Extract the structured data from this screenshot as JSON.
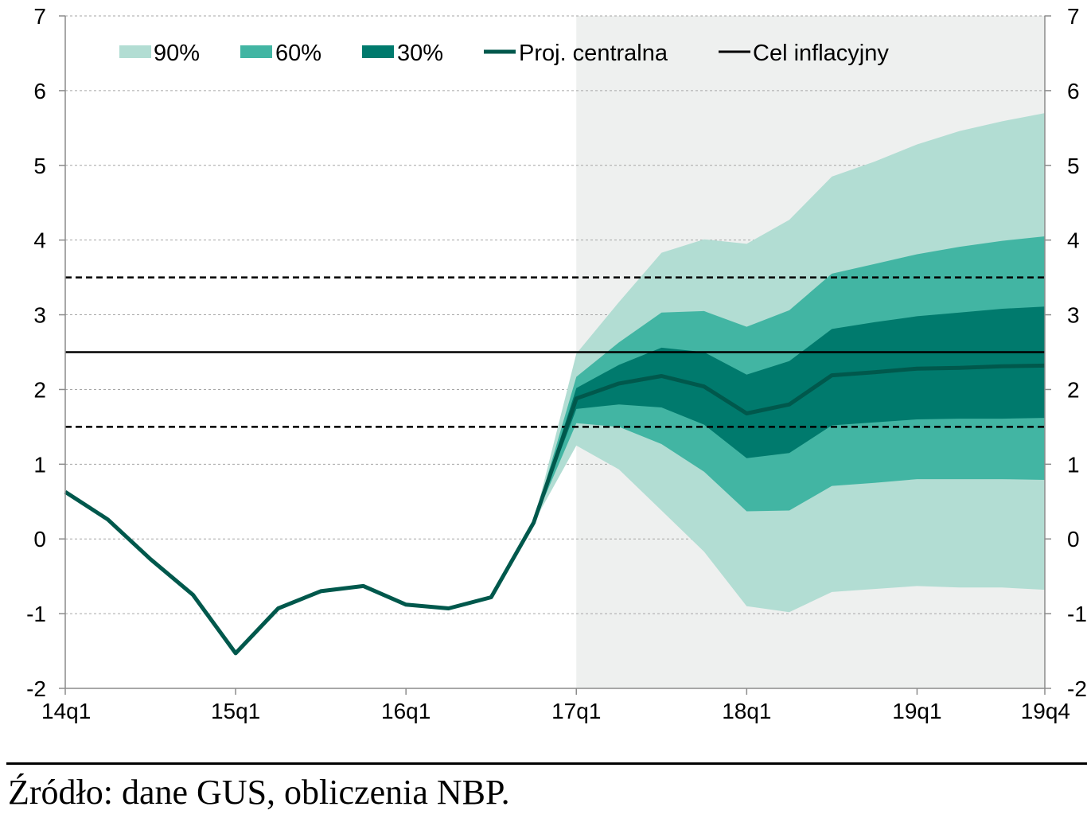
{
  "chart_data": {
    "type": "area",
    "title": "",
    "xlabel": "",
    "ylabel": "",
    "x_ticks": [
      "14q1",
      "15q1",
      "16q1",
      "17q1",
      "18q1",
      "19q1",
      "19q4"
    ],
    "quarters": [
      "14q1",
      "14q2",
      "14q3",
      "14q4",
      "15q1",
      "15q2",
      "15q3",
      "15q4",
      "16q1",
      "16q2",
      "16q3",
      "16q4",
      "17q1",
      "17q2",
      "17q3",
      "17q4",
      "18q1",
      "18q2",
      "18q3",
      "18q4",
      "19q1",
      "19q2",
      "19q3",
      "19q4"
    ],
    "ylim": [
      -2,
      7
    ],
    "y_ticks": [
      -2,
      -1,
      0,
      1,
      2,
      3,
      4,
      5,
      6,
      7
    ],
    "grid": true,
    "legend_position": "top",
    "projection_start": "17q1",
    "colors": {
      "band_90": "#b2ddd3",
      "band_60": "#42b5a3",
      "band_30": "#007a6d",
      "central": "#00584c",
      "target": "#000000",
      "shade": "#eef0ef",
      "grid": "#a6a6a6"
    },
    "series": [
      {
        "name": "Proj. centralna",
        "x": [
          "14q1",
          "14q2",
          "14q3",
          "14q4",
          "15q1",
          "15q2",
          "15q3",
          "15q4",
          "16q1",
          "16q2",
          "16q3",
          "16q4",
          "17q1",
          "17q2",
          "17q3",
          "17q4",
          "18q1",
          "18q2",
          "18q3",
          "18q4",
          "19q1",
          "19q2",
          "19q3",
          "19q4"
        ],
        "values": [
          0.63,
          0.26,
          -0.27,
          -0.75,
          -1.53,
          -0.93,
          -0.7,
          -0.63,
          -0.88,
          -0.93,
          -0.78,
          0.22,
          1.88,
          2.08,
          2.18,
          2.04,
          1.68,
          1.8,
          2.19,
          2.23,
          2.28,
          2.29,
          2.31,
          2.32
        ]
      },
      {
        "name": "Cel inflacyjny",
        "values": [
          2.5
        ]
      }
    ],
    "bands": [
      {
        "name": "90%",
        "x": [
          "16q4",
          "17q1",
          "17q2",
          "17q3",
          "17q4",
          "18q1",
          "18q2",
          "18q3",
          "18q4",
          "19q1",
          "19q2",
          "19q3",
          "19q4"
        ],
        "lower": [
          0.22,
          1.25,
          0.93,
          0.38,
          -0.17,
          -0.9,
          -0.98,
          -0.71,
          -0.67,
          -0.63,
          -0.65,
          -0.65,
          -0.68
        ],
        "upper": [
          0.22,
          2.48,
          3.17,
          3.83,
          4.01,
          3.95,
          4.27,
          4.85,
          5.05,
          5.28,
          5.46,
          5.59,
          5.7
        ]
      },
      {
        "name": "60%",
        "x": [
          "16q4",
          "17q1",
          "17q2",
          "17q3",
          "17q4",
          "18q1",
          "18q2",
          "18q3",
          "18q4",
          "19q1",
          "19q2",
          "19q3",
          "19q4"
        ],
        "lower": [
          0.22,
          1.55,
          1.5,
          1.27,
          0.9,
          0.37,
          0.38,
          0.71,
          0.75,
          0.8,
          0.8,
          0.8,
          0.79
        ],
        "upper": [
          0.22,
          2.17,
          2.63,
          3.03,
          3.05,
          2.84,
          3.06,
          3.55,
          3.68,
          3.81,
          3.91,
          3.99,
          4.05
        ]
      },
      {
        "name": "30%",
        "x": [
          "16q4",
          "17q1",
          "17q2",
          "17q3",
          "17q4",
          "18q1",
          "18q2",
          "18q3",
          "18q4",
          "19q1",
          "19q2",
          "19q3",
          "19q4"
        ],
        "lower": [
          0.22,
          1.74,
          1.8,
          1.76,
          1.53,
          1.08,
          1.15,
          1.52,
          1.56,
          1.6,
          1.61,
          1.61,
          1.62
        ],
        "upper": [
          0.22,
          2.02,
          2.33,
          2.56,
          2.5,
          2.2,
          2.38,
          2.81,
          2.9,
          2.98,
          3.03,
          3.08,
          3.11
        ]
      }
    ],
    "reference_lines": [
      {
        "value": 3.5,
        "style": "dashed"
      },
      {
        "value": 2.5,
        "style": "solid"
      },
      {
        "value": 1.5,
        "style": "dashed"
      }
    ],
    "legend": {
      "band_90": "90%",
      "band_60": "60%",
      "band_30": "30%",
      "central": "Proj. centralna",
      "target": "Cel inflacyjny"
    }
  },
  "source_note": "Źródło: dane GUS, obliczenia NBP."
}
